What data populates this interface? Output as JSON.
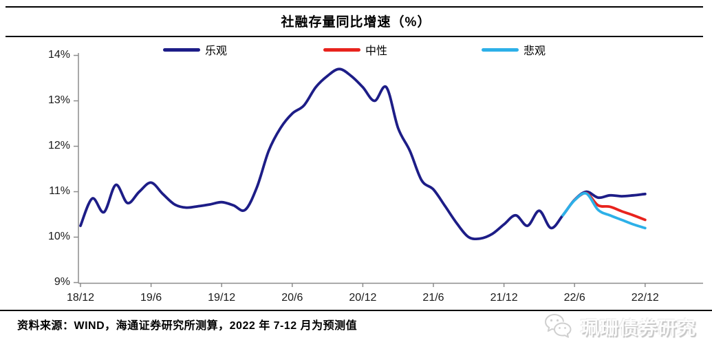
{
  "footer": {
    "source": "资料来源：WIND，海通证券研究所测算，2022 年 7-12 月为预测值"
  },
  "watermark": {
    "wechat_label": "珮珊债券研究"
  },
  "chart_data": {
    "type": "line",
    "title": "社融存量同比增速（%）",
    "xlabel": "",
    "ylabel": "",
    "y_unit": "%",
    "ylim": [
      9,
      14
    ],
    "grid": false,
    "legend_position": "top",
    "y_tick_labels": [
      "9%",
      "10%",
      "11%",
      "12%",
      "13%",
      "14%"
    ],
    "x_tick_labels": [
      "18/12",
      "19/6",
      "19/12",
      "20/6",
      "20/12",
      "21/6",
      "21/12",
      "22/6",
      "22/12"
    ],
    "x_labels": [
      "18/12",
      "19/1",
      "19/2",
      "19/3",
      "19/4",
      "19/5",
      "19/6",
      "19/7",
      "19/8",
      "19/9",
      "19/10",
      "19/11",
      "19/12",
      "20/1",
      "20/2",
      "20/3",
      "20/4",
      "20/5",
      "20/6",
      "20/7",
      "20/8",
      "20/9",
      "20/10",
      "20/11",
      "20/12",
      "21/1",
      "21/2",
      "21/3",
      "21/4",
      "21/5",
      "21/6",
      "21/7",
      "21/8",
      "21/9",
      "21/10",
      "21/11",
      "21/12",
      "22/1",
      "22/2",
      "22/3",
      "22/4",
      "22/5",
      "22/6",
      "22/7",
      "22/8",
      "22/9",
      "22/10",
      "22/11",
      "22/12"
    ],
    "forecast_note": "2022/7-2022/12 为预测值",
    "series": [
      {
        "name": "乐观",
        "color": "#1d1d87",
        "start_index": 0,
        "values": [
          10.25,
          10.85,
          10.55,
          11.15,
          10.75,
          11.0,
          11.2,
          10.95,
          10.72,
          10.65,
          10.68,
          10.72,
          10.77,
          10.7,
          10.6,
          11.1,
          11.9,
          12.4,
          12.72,
          12.9,
          13.3,
          13.55,
          13.7,
          13.55,
          13.3,
          13.0,
          13.3,
          12.4,
          11.9,
          11.25,
          11.05,
          10.68,
          10.3,
          10.0,
          9.97,
          10.07,
          10.28,
          10.48,
          10.25,
          10.58,
          10.2,
          10.48,
          10.82,
          11.0,
          10.87,
          10.92,
          10.9,
          10.92,
          10.95
        ]
      },
      {
        "name": "中性",
        "color": "#e8231d",
        "start_index": 42,
        "values": [
          10.82,
          10.97,
          10.7,
          10.67,
          10.57,
          10.48,
          10.38
        ]
      },
      {
        "name": "悲观",
        "color": "#2db0e8",
        "start_index": 41,
        "values": [
          10.48,
          10.81,
          10.96,
          10.6,
          10.48,
          10.38,
          10.28,
          10.2
        ]
      }
    ]
  }
}
